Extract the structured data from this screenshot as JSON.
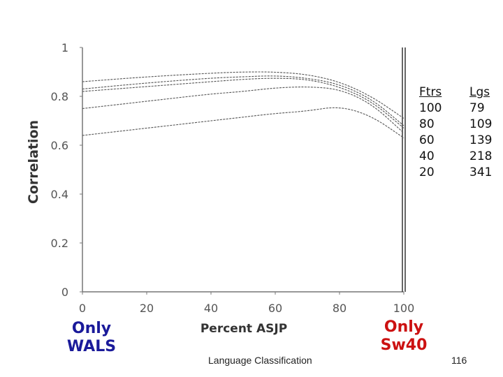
{
  "chart_data": {
    "type": "line",
    "title": "",
    "xlabel": "Percent ASJP",
    "ylabel": "Correlation",
    "xlim": [
      0,
      100
    ],
    "ylim": [
      0,
      1
    ],
    "xticks": [
      "0",
      "20",
      "40",
      "60",
      "80",
      "100"
    ],
    "yticks": [
      "0",
      "0.2",
      "0.4",
      "0.6",
      "0.8",
      "1"
    ],
    "grid": false,
    "series": [
      {
        "features": 100,
        "languages": 79,
        "x": [
          0,
          20,
          40,
          50,
          60,
          70,
          80,
          90,
          100
        ],
        "y": [
          0.86,
          0.88,
          0.895,
          0.9,
          0.9,
          0.89,
          0.86,
          0.8,
          0.71
        ]
      },
      {
        "features": 80,
        "languages": 109,
        "x": [
          0,
          20,
          40,
          50,
          60,
          70,
          80,
          90,
          100
        ],
        "y": [
          0.83,
          0.855,
          0.875,
          0.88,
          0.885,
          0.875,
          0.85,
          0.79,
          0.68
        ]
      },
      {
        "features": 60,
        "languages": 139,
        "x": [
          0,
          20,
          40,
          50,
          60,
          70,
          80,
          90,
          100
        ],
        "y": [
          0.82,
          0.84,
          0.86,
          0.87,
          0.875,
          0.87,
          0.84,
          0.78,
          0.67
        ]
      },
      {
        "features": 40,
        "languages": 218,
        "x": [
          0,
          20,
          40,
          50,
          60,
          70,
          80,
          90,
          100
        ],
        "y": [
          0.75,
          0.78,
          0.81,
          0.82,
          0.835,
          0.84,
          0.83,
          0.77,
          0.65
        ]
      },
      {
        "features": 20,
        "languages": 341,
        "x": [
          0,
          20,
          40,
          50,
          60,
          70,
          80,
          90,
          100
        ],
        "y": [
          0.64,
          0.67,
          0.7,
          0.715,
          0.73,
          0.74,
          0.76,
          0.72,
          0.63
        ]
      }
    ],
    "legend": {
      "placement": "top-right",
      "ftrs_header": "Ftrs",
      "lgs_header": "Lgs",
      "ftrs": [
        "100",
        "80",
        "60",
        "40",
        "20"
      ],
      "lgs": [
        "79",
        "109",
        "139",
        "218",
        "341"
      ]
    }
  },
  "annotations": {
    "left": [
      "Only",
      "WALS"
    ],
    "right": [
      "Only",
      "Sw40"
    ]
  },
  "footer": {
    "text": "Language Classification",
    "page": "116"
  }
}
